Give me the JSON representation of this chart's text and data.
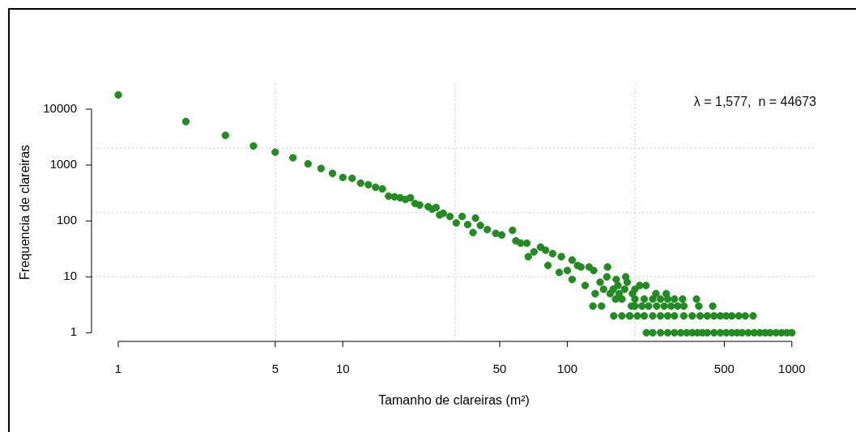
{
  "chart_data": {
    "type": "scatter",
    "xlabel": "Tamanho de clareiras (m²)",
    "ylabel": "Frequencia de clareiras",
    "annotations": [
      "λ = 1,577,  n = 44673"
    ],
    "log": "xy",
    "marker": "circle",
    "color": "#228b22",
    "xlim": [
      0.76,
      1285
    ],
    "xticks": [
      1,
      5,
      10,
      50,
      100,
      500,
      1000
    ],
    "ylim": [
      0.72,
      29000
    ],
    "yticks": [
      1,
      10,
      100,
      1000,
      10000
    ],
    "ref_lines": [
      {
        "axis": "x",
        "value": 5,
        "color": "#cccccc",
        "line_style": "dotted"
      },
      {
        "axis": "x",
        "value": 31.6,
        "color": "#cccccc",
        "line_style": "dotted"
      },
      {
        "axis": "x",
        "value": 200,
        "color": "#cccccc",
        "line_style": "dotted"
      },
      {
        "axis": "y",
        "value": 10,
        "color": "#cccccc",
        "line_style": "dotted"
      },
      {
        "axis": "y",
        "value": 140,
        "color": "#cccccc",
        "line_style": "dotted"
      },
      {
        "axis": "y",
        "value": 2000,
        "color": "#cccccc",
        "line_style": "dotted"
      }
    ],
    "x": [
      1,
      2,
      3,
      4,
      5,
      6,
      7,
      8,
      9,
      10,
      11,
      12,
      13,
      14,
      15,
      16,
      17,
      18,
      19,
      20,
      21,
      22,
      24,
      25,
      26,
      27,
      28,
      30,
      32,
      34,
      36,
      38,
      39,
      41,
      44,
      48,
      51,
      57,
      59,
      62,
      66,
      67,
      71,
      76,
      80,
      82,
      86,
      92,
      94,
      100,
      105,
      105,
      111,
      115,
      120,
      125,
      131,
      133,
      130,
      142,
      151,
      161,
      164,
      168,
      182,
      189,
      193,
      210,
      224,
      248,
      276,
      326,
      376,
      385,
      444,
      672,
      140,
      145,
      150,
      155,
      160,
      165,
      170,
      175,
      180,
      185,
      195,
      200,
      200,
      225,
      240,
      260,
      280,
      300,
      320,
      340,
      360,
      380,
      400,
      420,
      450,
      480,
      510,
      540,
      570,
      600,
      640,
      680,
      720,
      760,
      800,
      850,
      900,
      950,
      1000,
      175,
      190,
      205,
      220,
      240,
      260,
      280,
      300,
      330,
      360,
      390,
      420,
      450,
      480,
      510,
      540,
      580,
      620,
      200,
      215,
      230,
      250,
      270,
      290,
      310,
      330,
      220,
      240,
      260,
      280,
      300
    ],
    "values": [
      18000,
      6000,
      3400,
      2200,
      1700,
      1350,
      1050,
      870,
      710,
      600,
      580,
      475,
      445,
      400,
      375,
      278,
      270,
      260,
      243,
      260,
      205,
      192,
      180,
      163,
      174,
      128,
      137,
      120,
      92,
      120,
      86,
      62,
      112,
      83,
      70,
      60,
      56,
      68,
      44,
      40,
      40,
      23,
      28,
      34,
      30,
      16,
      26,
      12,
      23,
      13,
      20,
      9,
      16,
      15,
      7,
      15,
      13,
      5,
      3,
      3,
      15,
      2,
      4,
      7,
      10,
      2,
      3,
      7,
      7,
      5,
      5,
      4,
      4,
      3,
      3,
      2,
      8,
      6,
      10,
      5,
      6,
      9,
      5,
      4,
      6,
      8,
      5,
      4,
      6,
      1,
      1,
      1,
      1,
      1,
      1,
      1,
      1,
      1,
      1,
      1,
      1,
      1,
      1,
      1,
      1,
      1,
      1,
      1,
      1,
      1,
      1,
      1,
      1,
      1,
      1,
      2,
      2,
      2,
      2,
      2,
      2,
      2,
      2,
      2,
      2,
      2,
      2,
      2,
      2,
      2,
      2,
      2,
      2,
      3,
      3,
      3,
      3,
      3,
      3,
      3,
      3,
      4,
      4,
      4,
      4,
      4
    ]
  }
}
